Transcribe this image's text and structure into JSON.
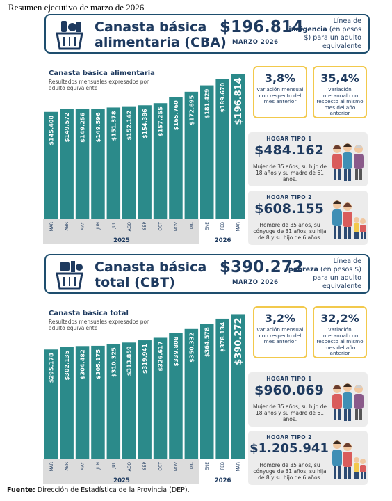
{
  "page_title": "Resumen ejecutivo de marzo de 2026",
  "cba": {
    "banner": {
      "name_line1": "Canasta básica",
      "name_line2": "alimentaria (CBA)",
      "value": "$196.814",
      "month": "MARZO 2026",
      "line_pre": "Línea de",
      "line_bold": "indigencia",
      "line_post": " (en pesos $) para un adulto equivalente",
      "icon": "grocery-basket-icon"
    },
    "chart_title": "Canasta básica alimentaria",
    "chart_subtitle": "Resultados mensuales expresados por adulto equivalente",
    "var_mensual": {
      "value": "3,8%",
      "text": "variación mensual con respecto del mes anterior"
    },
    "var_interanual": {
      "value": "35,4%",
      "text": "variación interanual con respecto al mismo mes del año anterior"
    },
    "hogar1": {
      "title": "HOGAR TIPO 1",
      "value": "$484.162",
      "desc": "Mujer de 35 años, su hijo de 18 años y su madre de 61 años.",
      "icon": "family-type1-icon"
    },
    "hogar2": {
      "title": "HOGAR TIPO 2",
      "value": "$608.155",
      "desc": "Hombre de 35 años, su cónyuge de 31 años, su hija de 8 y su hijo de 6 años.",
      "icon": "family-type2-icon"
    }
  },
  "cbt": {
    "banner": {
      "name_line1": "Canasta básica",
      "name_line2": "total (CBT)",
      "value": "$390.272",
      "month": "MARZO 2026",
      "line_pre": "Línea de",
      "line_bold": "pobreza",
      "line_post": " (en pesos $) para un adulto equivalente",
      "icon": "shopping-basket-icon"
    },
    "chart_title": "Canasta básica total",
    "chart_subtitle": "Resultados mensuales expresados por adulto equivalente",
    "var_mensual": {
      "value": "3,2%",
      "text": "variación mensual con respecto del mes anterior"
    },
    "var_interanual": {
      "value": "32,2%",
      "text": "variación interanual con respecto al mismo mes del año anterior"
    },
    "hogar1": {
      "title": "HOGAR TIPO 1",
      "value": "$960.069",
      "desc": "Mujer de 35 años, su hijo de 18 años y su madre de 61 años.",
      "icon": "family-type1-icon"
    },
    "hogar2": {
      "title": "HOGAR TIPO 2",
      "value": "$1.205.941",
      "desc": "Hombre de 35 años, su cónyuge de 31 años, su hija de 8 y su hijo de 6 años.",
      "icon": "family-type2-icon"
    }
  },
  "footer": {
    "label": "Fuente:",
    "text": " Dirección de Estadística de la Provincia (DEP)."
  },
  "colors": {
    "bar": "#2b8a8a",
    "accent_border": "#f2c94c",
    "navy": "#1e3a5f",
    "axis_band": "#dcdcdc"
  },
  "chart_data": [
    {
      "type": "bar",
      "title": "Canasta básica alimentaria",
      "subtitle": "Resultados mensuales expresados por adulto equivalente",
      "categories": [
        "MAR",
        "ABR",
        "MAY",
        "JUN",
        "JUL",
        "AGO",
        "SEP",
        "OCT",
        "NOV",
        "DIC",
        "ENE",
        "FEB",
        "MAR"
      ],
      "year_groups": [
        {
          "label": "2025",
          "count": 10
        },
        {
          "label": "2026",
          "count": 3
        }
      ],
      "values": [
        145408,
        149572,
        149256,
        149596,
        151378,
        152142,
        154386,
        157255,
        165760,
        172695,
        181429,
        189670,
        196814
      ],
      "labels": [
        "$145.408",
        "$149.572",
        "$149.256",
        "$149.596",
        "$151.378",
        "$152.142",
        "$154.386",
        "$157.255",
        "$165.760",
        "$172.695",
        "$181.429",
        "$189.670",
        "$196.814"
      ],
      "ylim": [
        0,
        198000
      ]
    },
    {
      "type": "bar",
      "title": "Canasta básica total",
      "subtitle": "Resultados mensuales expresados por adulto equivalente",
      "categories": [
        "MAR",
        "ABR",
        "MAY",
        "JUN",
        "JUL",
        "AGO",
        "SEP",
        "OCT",
        "NOV",
        "DIC",
        "ENE",
        "FEB",
        "MAR"
      ],
      "year_groups": [
        {
          "label": "2025",
          "count": 10
        },
        {
          "label": "2026",
          "count": 3
        }
      ],
      "values": [
        295178,
        302135,
        304482,
        305175,
        310325,
        313859,
        319941,
        326617,
        339808,
        350332,
        364578,
        378134,
        390272
      ],
      "labels": [
        "$295.178",
        "$302.135",
        "$304.482",
        "$305.175",
        "$310.325",
        "$313.859",
        "$319.941",
        "$326.617",
        "$339.808",
        "$350.332",
        "$364.578",
        "$378.134",
        "$390.272"
      ],
      "ylim": [
        0,
        393000
      ]
    }
  ]
}
